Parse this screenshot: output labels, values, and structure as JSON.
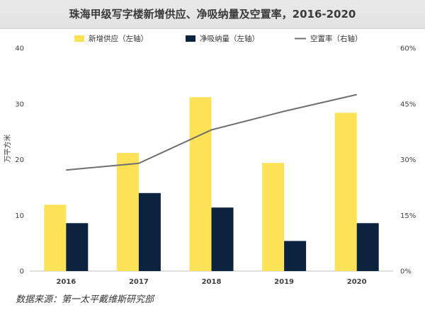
{
  "title": "珠海甲级写字楼新增供应、净吸纳量及空置率，2016-2020",
  "source": "数据来源：第一太平戴维斯研究部",
  "colors": {
    "supply": "#FDE157",
    "absorption": "#0C2340",
    "vacancy": "#6F6F6F",
    "title_bg": "#E6E6E6"
  },
  "chart_data": {
    "type": "bar",
    "categories": [
      "2016",
      "2017",
      "2018",
      "2019",
      "2020"
    ],
    "series": [
      {
        "name": "新增供应（左轴）",
        "type": "bar",
        "axis": "left",
        "values": [
          11.9,
          21.2,
          31.2,
          19.4,
          28.4
        ]
      },
      {
        "name": "净吸纳量（左轴）",
        "type": "bar",
        "axis": "left",
        "values": [
          8.6,
          14.0,
          11.4,
          5.4,
          8.6
        ]
      },
      {
        "name": "空置率（右轴）",
        "type": "line",
        "axis": "right",
        "values": [
          0.272,
          0.29,
          0.38,
          0.43,
          0.475
        ]
      }
    ],
    "ylabel": "万平方米",
    "ylim": [
      0,
      40
    ],
    "yticks": [
      "0",
      "10",
      "20",
      "30",
      "40"
    ],
    "y2lim": [
      0,
      0.6
    ],
    "y2ticks": [
      "0%",
      "15%",
      "30%",
      "45%",
      "60%"
    ],
    "grid": false,
    "legend": "top"
  }
}
